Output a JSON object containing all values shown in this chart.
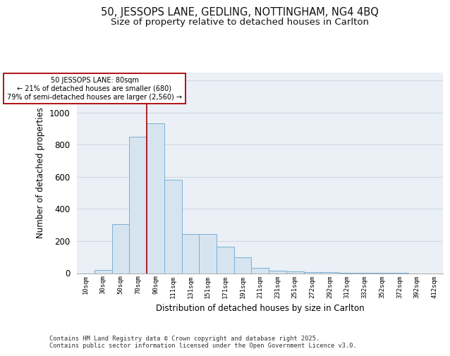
{
  "title1": "50, JESSOPS LANE, GEDLING, NOTTINGHAM, NG4 4BQ",
  "title2": "Size of property relative to detached houses in Carlton",
  "xlabel": "Distribution of detached houses by size in Carlton",
  "ylabel": "Number of detached properties",
  "categories": [
    "10sqm",
    "30sqm",
    "50sqm",
    "70sqm",
    "90sqm",
    "111sqm",
    "131sqm",
    "151sqm",
    "171sqm",
    "191sqm",
    "211sqm",
    "231sqm",
    "251sqm",
    "272sqm",
    "292sqm",
    "312sqm",
    "332sqm",
    "352sqm",
    "372sqm",
    "392sqm",
    "412sqm"
  ],
  "values": [
    0,
    20,
    305,
    850,
    930,
    580,
    245,
    245,
    165,
    100,
    35,
    15,
    10,
    8,
    5,
    3,
    2,
    1,
    1,
    0,
    0
  ],
  "bar_fill_color": "#d6e4f0",
  "bar_edge_color": "#7aafd4",
  "grid_color": "#d0d8e0",
  "background_color": "#eaf0f6",
  "vline_color": "#aa0000",
  "vline_x_index": 3,
  "annotation_line1": "50 JESSOPS LANE: 80sqm",
  "annotation_line2": "← 21% of detached houses are smaller (680)",
  "annotation_line3": "79% of semi-detached houses are larger (2,560) →",
  "ylim": [
    0,
    1250
  ],
  "yticks": [
    0,
    200,
    400,
    600,
    800,
    1000,
    1200
  ],
  "footer1": "Contains HM Land Registry data © Crown copyright and database right 2025.",
  "footer2": "Contains public sector information licensed under the Open Government Licence v3.0."
}
